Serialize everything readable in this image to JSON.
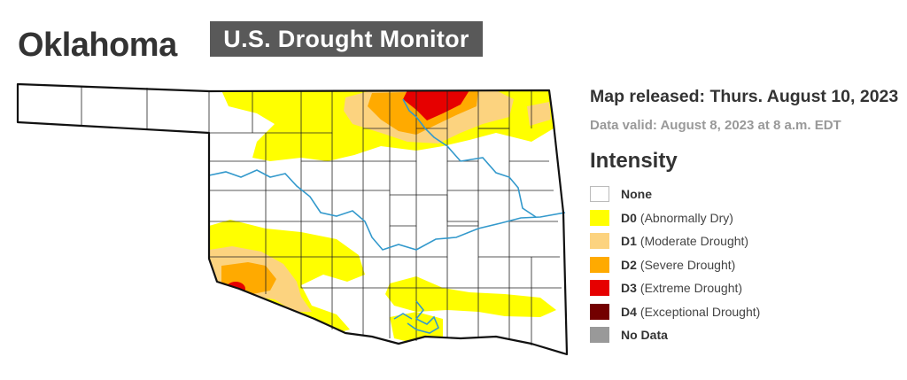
{
  "header": {
    "state": "Oklahoma",
    "banner": "U.S. Drought Monitor"
  },
  "info": {
    "released": "Map released: Thurs. August 10, 2023",
    "valid": "Data valid: August 8, 2023 at 8 a.m. EDT"
  },
  "legend": {
    "title": "Intensity",
    "items": [
      {
        "code": "None",
        "desc": "",
        "color": "#ffffff"
      },
      {
        "code": "D0",
        "desc": "(Abnormally Dry)",
        "color": "#ffff00"
      },
      {
        "code": "D1",
        "desc": "(Moderate Drought)",
        "color": "#fcd37f"
      },
      {
        "code": "D2",
        "desc": "(Severe Drought)",
        "color": "#ffaa00"
      },
      {
        "code": "D3",
        "desc": "(Extreme Drought)",
        "color": "#e60000"
      },
      {
        "code": "D4",
        "desc": "(Exceptional Drought)",
        "color": "#730000"
      },
      {
        "code": "No Data",
        "desc": "",
        "color": "#999999"
      }
    ]
  },
  "map": {
    "river_color": "#3399cc",
    "county_line_color": "#222222"
  }
}
